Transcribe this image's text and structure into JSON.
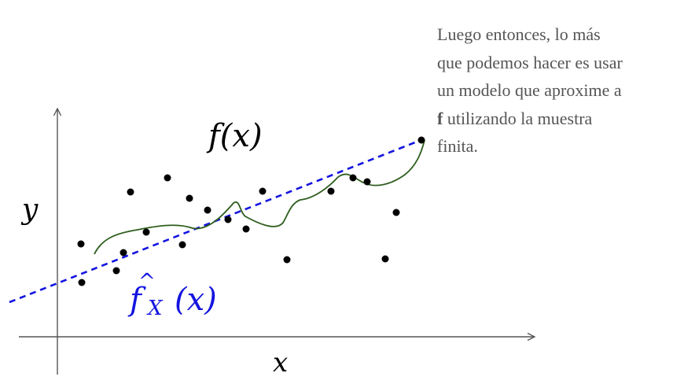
{
  "caption": {
    "lines": [
      "Luego entonces, lo  más",
      "que podemos hacer es usar",
      "un modelo que aproxime a"
    ],
    "bold_word": "f",
    "line4_rest": " utilizando la muestra",
    "line5": "finita."
  },
  "labels": {
    "true_function": "f(x)",
    "y_axis": "y",
    "x_axis": "x",
    "estimator_base": "f",
    "estimator_sub": "X",
    "estimator_arg": "(x)"
  },
  "colors": {
    "axis": "#555555",
    "points": "#000000",
    "fitted_curve": "#2e5e1e",
    "linear_model": "#1414e0",
    "caption_text": "#555555"
  }
}
